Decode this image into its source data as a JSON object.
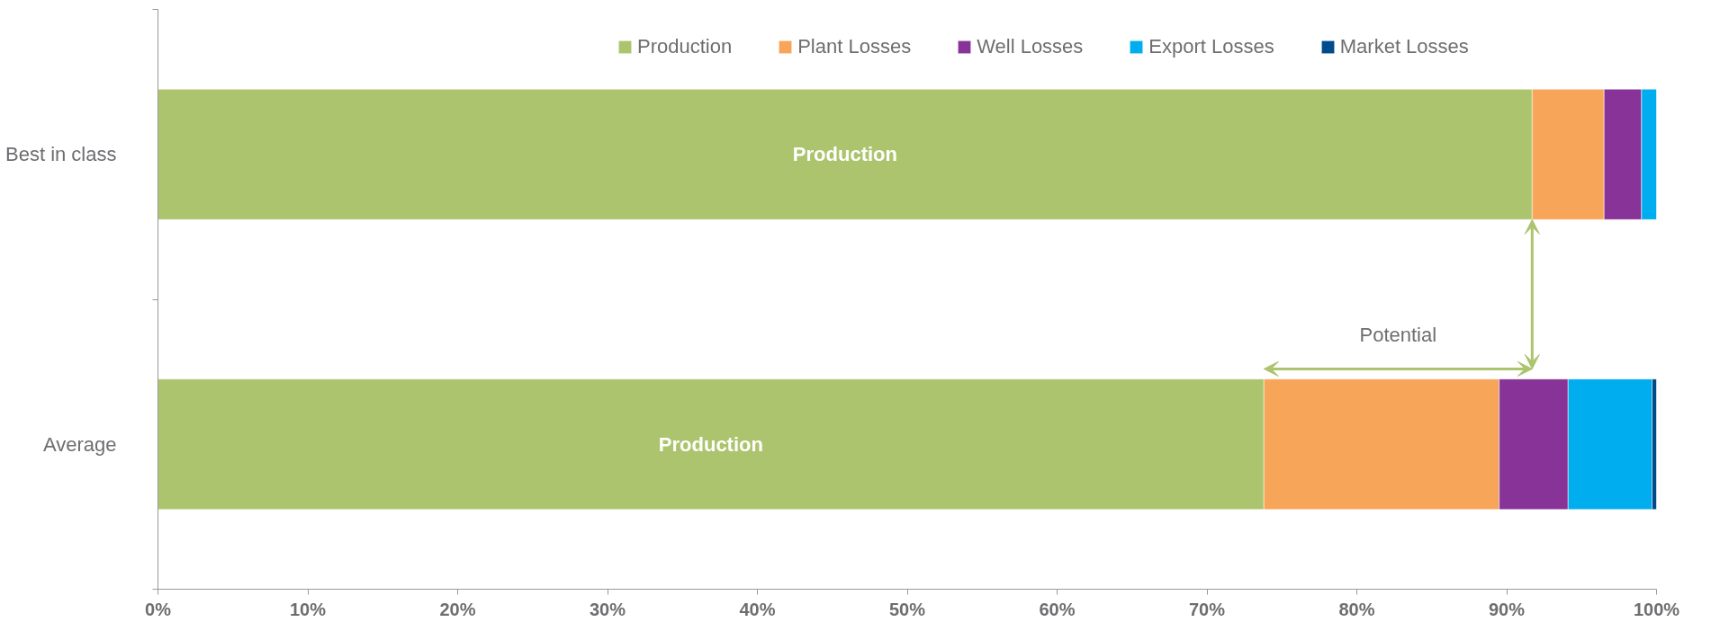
{
  "chart_data": {
    "type": "bar",
    "orientation": "horizontal",
    "stacked": true,
    "categories": [
      "Best in class",
      "Average"
    ],
    "series": [
      {
        "name": "Production",
        "color": "#adc46e",
        "values": [
          91.7,
          73.8
        ],
        "value_labels": [
          "Production",
          "Production"
        ]
      },
      {
        "name": "Plant Losses",
        "color": "#f7a558",
        "values": [
          4.8,
          15.7
        ]
      },
      {
        "name": "Well Losses",
        "color": "#873397",
        "values": [
          2.5,
          4.6
        ]
      },
      {
        "name": "Export Losses",
        "color": "#00adee",
        "values": [
          1.0,
          5.6
        ]
      },
      {
        "name": "Market Losses",
        "color": "#004b8d",
        "values": [
          null,
          0.3
        ]
      }
    ],
    "xlim": [
      0,
      100
    ],
    "xticks": [
      {
        "value": 0,
        "label": "0%"
      },
      {
        "value": 10,
        "label": "10%"
      },
      {
        "value": 20,
        "label": "20%"
      },
      {
        "value": 30,
        "label": "30%"
      },
      {
        "value": 40,
        "label": "40%"
      },
      {
        "value": 50,
        "label": "50%"
      },
      {
        "value": 60,
        "label": "60%"
      },
      {
        "value": 70,
        "label": "70%"
      },
      {
        "value": 80,
        "label": "80%"
      },
      {
        "value": 90,
        "label": "90%"
      },
      {
        "value": 100,
        "label": "100%"
      }
    ],
    "annotations": [
      "Potential"
    ],
    "legend": "top right",
    "grid": false
  }
}
